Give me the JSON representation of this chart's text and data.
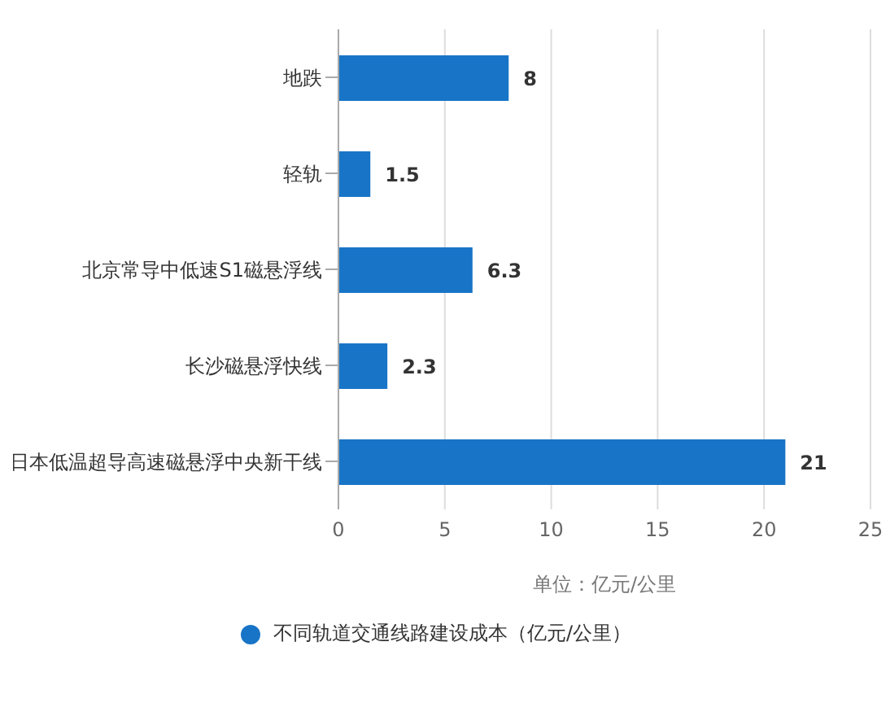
{
  "chart_data": {
    "type": "bar",
    "orientation": "horizontal",
    "categories": [
      "地跌",
      "轻轨",
      "北京常导中低速S1磁悬浮线",
      "长沙磁悬浮快线",
      "日本低温超导高速磁悬浮中央新干线"
    ],
    "series": [
      {
        "name": "不同轨道交通线路建设成本（亿元/公里）",
        "color": "#1874c6",
        "values": [
          8,
          1.5,
          6.3,
          2.3,
          21
        ]
      }
    ],
    "xlabel": "单位：亿元/公里",
    "xlim": [
      0,
      25
    ],
    "xticks": [
      0,
      5,
      10,
      15,
      20,
      25
    ],
    "grid": "x",
    "legend": "bottom",
    "data_labels": true
  }
}
